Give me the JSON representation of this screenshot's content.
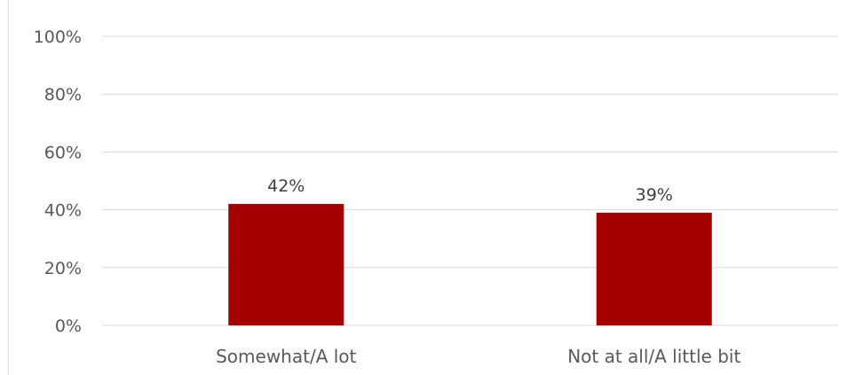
{
  "chart_data": {
    "type": "bar",
    "title": "",
    "xlabel": "",
    "ylabel": "",
    "categories": [
      "Somewhat/A lot",
      "Not at all/A little bit"
    ],
    "values": [
      42,
      39
    ],
    "data_labels": [
      "42%",
      "39%"
    ],
    "ylim": [
      0,
      100
    ],
    "yticks": [
      0,
      20,
      40,
      60,
      80,
      100
    ],
    "ytick_labels": [
      "0%",
      "20%",
      "40%",
      "60%",
      "80%",
      "100%"
    ],
    "grid": true,
    "legend": "none",
    "bar_color": "#a50000"
  }
}
